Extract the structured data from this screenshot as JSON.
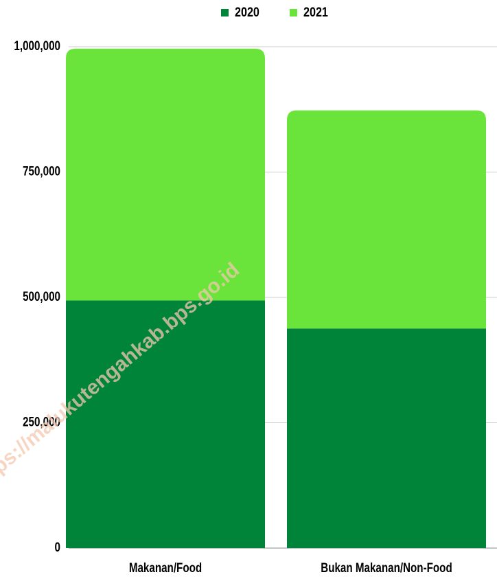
{
  "chart_data": {
    "type": "stacked_bar",
    "categories": [
      "Makanan/Food",
      "Bukan Makanan/Non-Food"
    ],
    "series": [
      {
        "name": "2020",
        "color": "#00843a",
        "values": [
          494000,
          438000
        ]
      },
      {
        "name": "2021",
        "color": "#6ae43a",
        "values": [
          502000,
          435000
        ]
      }
    ],
    "ylim": [
      0,
      1000000
    ],
    "yticks": [
      0,
      {
        "value": 250000,
        "label": "250,000"
      },
      {
        "value": 500000,
        "label": "500,000"
      },
      {
        "value": 750000,
        "label": "750,000"
      },
      {
        "value": 1000000,
        "label": "1,000,000"
      }
    ],
    "grid": true,
    "legend": "top",
    "watermark": "https://malukutengahkab.bps.go.id"
  }
}
